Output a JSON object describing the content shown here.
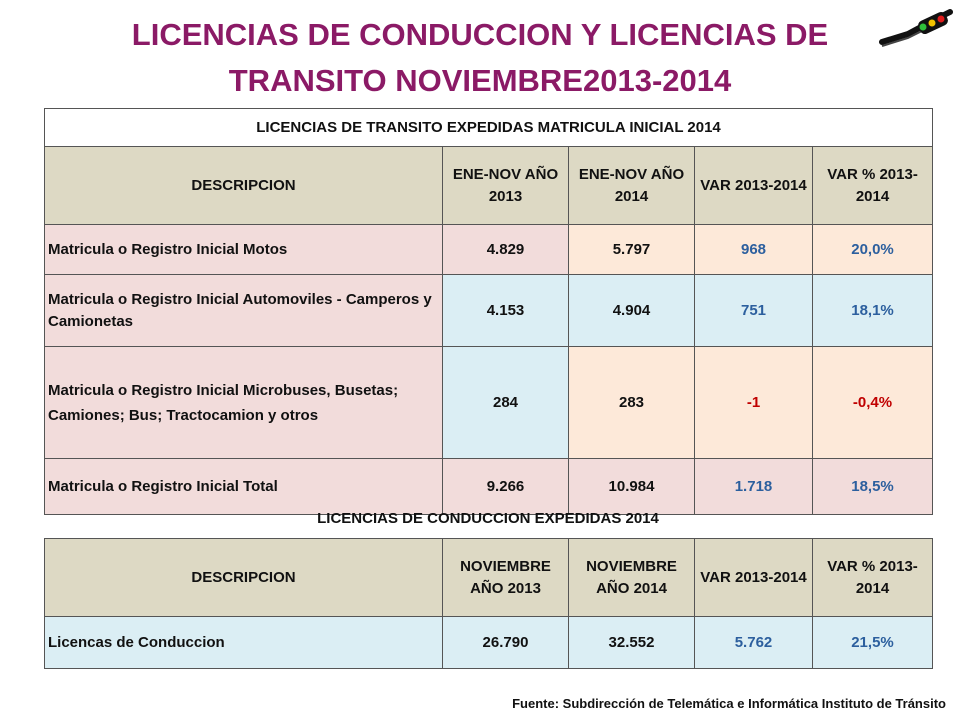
{
  "title": {
    "line1": "LICENCIAS DE CONDUCCION Y LICENCIAS DE",
    "line2": "TRANSITO NOVIEMBRE2013-2014"
  },
  "table1": {
    "caption": "LICENCIAS DE TRANSITO EXPEDIDAS MATRICULA INICIAL 2014",
    "headers": [
      "DESCRIPCION",
      "ENE-NOV AÑO 2013",
      "ENE-NOV AÑO 2014",
      "VAR 2013-2014",
      "VAR % 2013-2014"
    ],
    "rows": [
      {
        "desc": "Matricula o Registro Inicial Motos",
        "v2013": "4.829",
        "v2014": "5.797",
        "var": "968",
        "pct": "20,0%"
      },
      {
        "desc": "Matricula o Registro Inicial Automoviles - Camperos y Camionetas",
        "v2013": "4.153",
        "v2014": "4.904",
        "var": "751",
        "pct": "18,1%"
      },
      {
        "desc": "Matricula o Registro Inicial Microbuses, Busetas; Camiones; Bus; Tractocamion y otros",
        "v2013": "284",
        "v2014": "283",
        "var": "-1",
        "pct": "-0,4%"
      },
      {
        "desc": "Matricula o Registro Inicial Total",
        "v2013": "9.266",
        "v2014": "10.984",
        "var": "1.718",
        "pct": "18,5%"
      }
    ]
  },
  "table2": {
    "caption": "LICENCIAS DE CONDUCCION EXPEDIDAS 2014",
    "headers": [
      "DESCRIPCION",
      "NOVIEMBRE AÑO 2013",
      "NOVIEMBRE AÑO 2014",
      "VAR 2013-2014",
      "VAR % 2013-2014"
    ],
    "rows": [
      {
        "desc": "Licencas de Conduccion",
        "v2013": "26.790",
        "v2014": "32.552",
        "var": "5.762",
        "pct": "21,5%"
      }
    ]
  },
  "source": "Fuente: Subdirección de Telemática e Informática Instituto de Tránsito",
  "logo_icon": "traffic-light-logo-icon",
  "colors": {
    "title": "#8b1a66",
    "header_bg": "#ddd9c4",
    "desc_bg": "#f2dcdb",
    "value_bg": "#dbeef4",
    "var_bg": "#fde9d9",
    "accent": "#2c5f9e",
    "negative": "#c00000"
  }
}
